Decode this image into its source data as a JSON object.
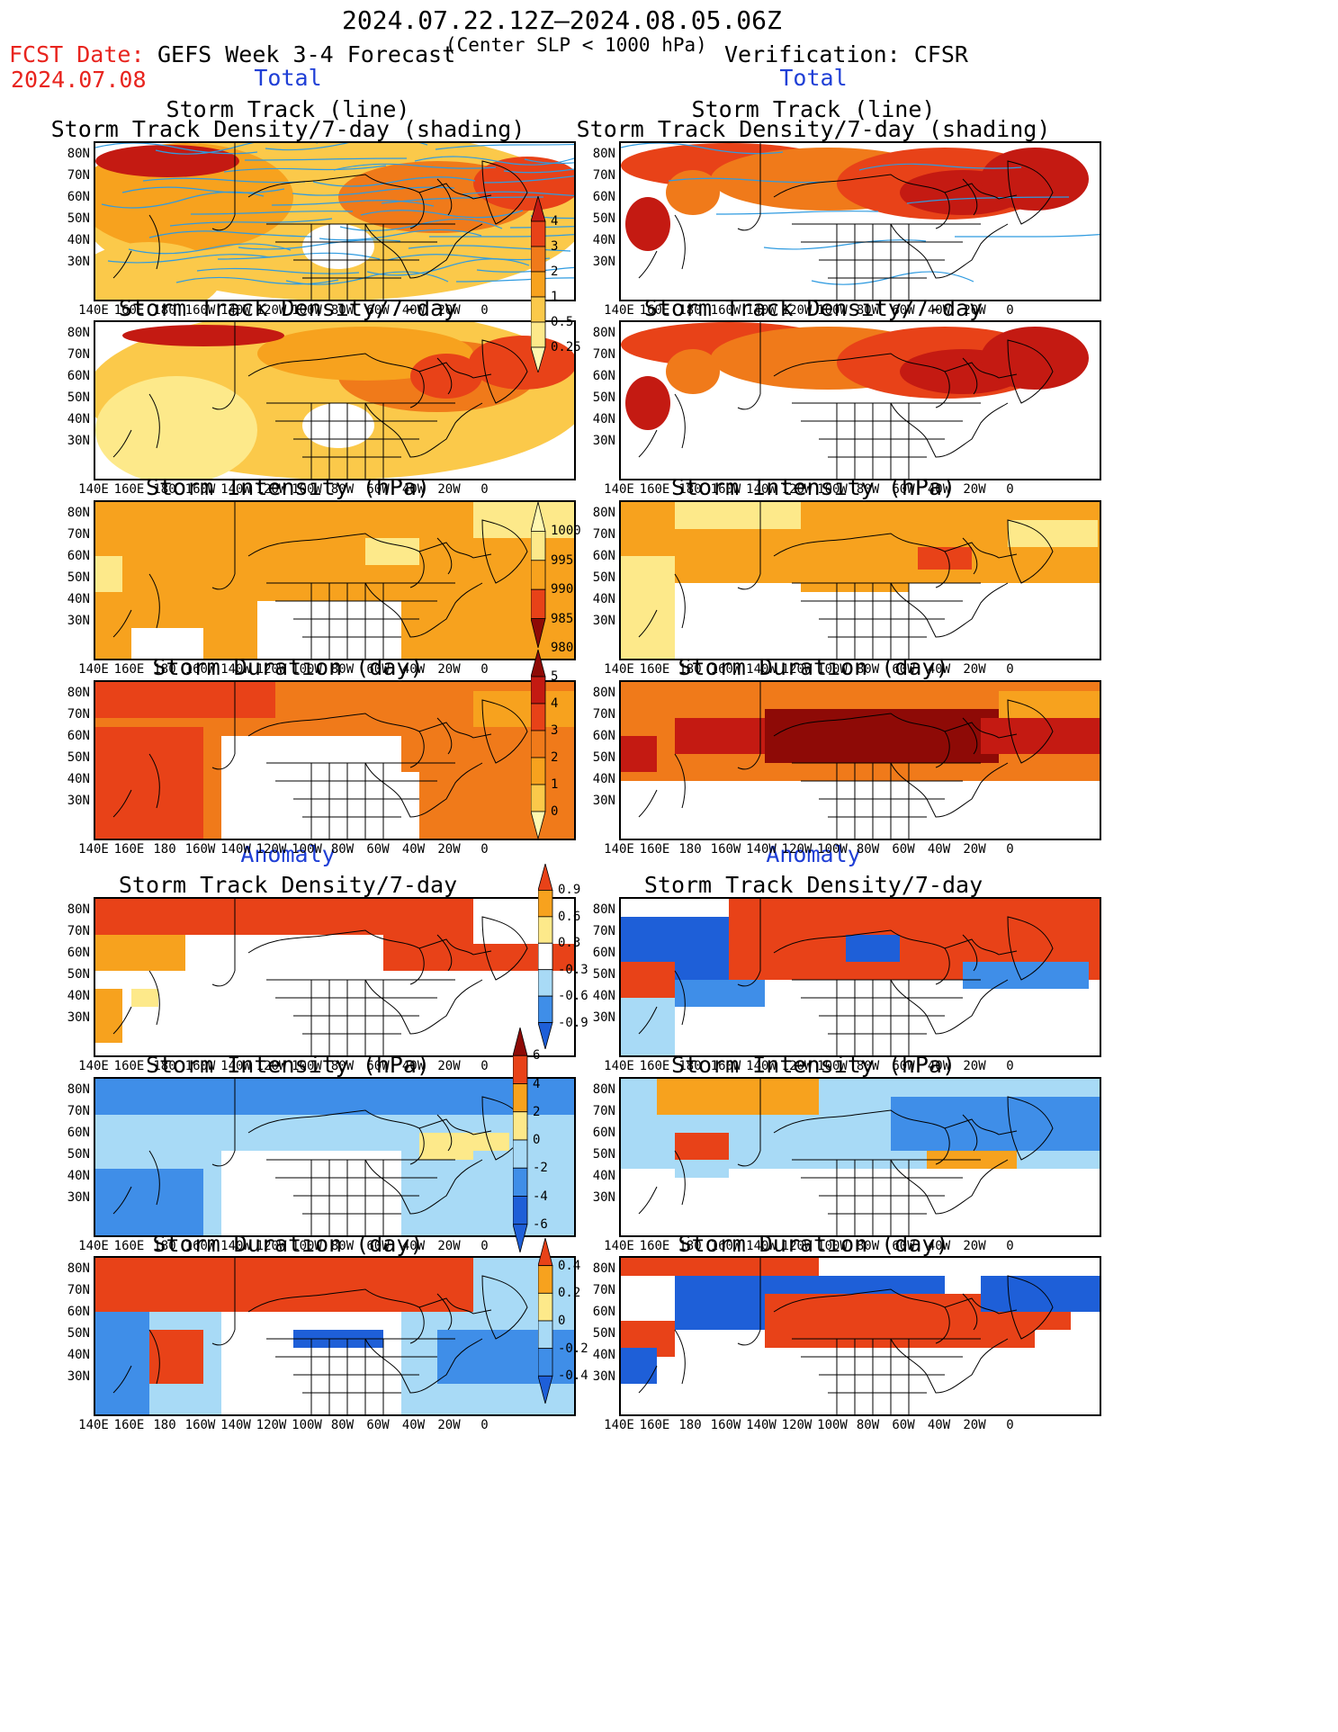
{
  "header": {
    "date_range": "2024.07.22.12Z–2024.08.05.06Z",
    "fcst_label": "FCST Date:",
    "fcst_date": "2024.07.08",
    "forecast_title": "GEFS Week 3-4 Forecast",
    "condition": "(Center SLP < 1000 hPa)",
    "verification": "Verification: CFSR"
  },
  "sections": {
    "total_left": "Total",
    "total_right": "Total",
    "anomaly_left": "Anomaly",
    "anomaly_right": "Anomaly"
  },
  "panel_titles": {
    "track_line": "Storm Track (line)",
    "track_shading": "Storm Track Density/7-day (shading)",
    "density": "Storm Track Density/7-day",
    "intensity": "Storm Intensity (hPa)",
    "duration": "Storm Duration (day)"
  },
  "axes": {
    "y_ticks": [
      "80N",
      "70N",
      "60N",
      "50N",
      "40N",
      "30N"
    ],
    "x_ticks": [
      "140E",
      "160E",
      "180",
      "160W",
      "140W",
      "120W",
      "100W",
      "80W",
      "60W",
      "40W",
      "20W",
      "0"
    ]
  },
  "colorbars": {
    "density_total": [
      "4",
      "3",
      "2",
      "1",
      "0.5",
      "0.25"
    ],
    "intensity_total": [
      "1000",
      "995",
      "990",
      "985",
      "980"
    ],
    "duration_total": [
      "5",
      "4",
      "3",
      "2",
      "1",
      "0"
    ],
    "density_anom": [
      "0.9",
      "0.6",
      "0.3",
      "-0.3",
      "-0.6",
      "-0.9"
    ],
    "intensity_anom": [
      "6",
      "4",
      "2",
      "0",
      "-2",
      "-4",
      "-6"
    ],
    "duration_anom": [
      "0.4",
      "0.2",
      "0",
      "-0.2",
      "-0.4"
    ]
  },
  "colors": {
    "total_scale": [
      "#fff8b0",
      "#fde98a",
      "#fbc94a",
      "#f7a21e",
      "#f07a1a",
      "#e84218",
      "#c41a12",
      "#8e0a06"
    ],
    "anomaly_scale": [
      "#1e5fd8",
      "#3f8ee8",
      "#a8daf6",
      "#ffffff",
      "#fde98a",
      "#f7a21e",
      "#e84218"
    ],
    "track_line": "#2f9be0",
    "header_red": "#e8241e",
    "header_blue": "#1f3fd6"
  }
}
